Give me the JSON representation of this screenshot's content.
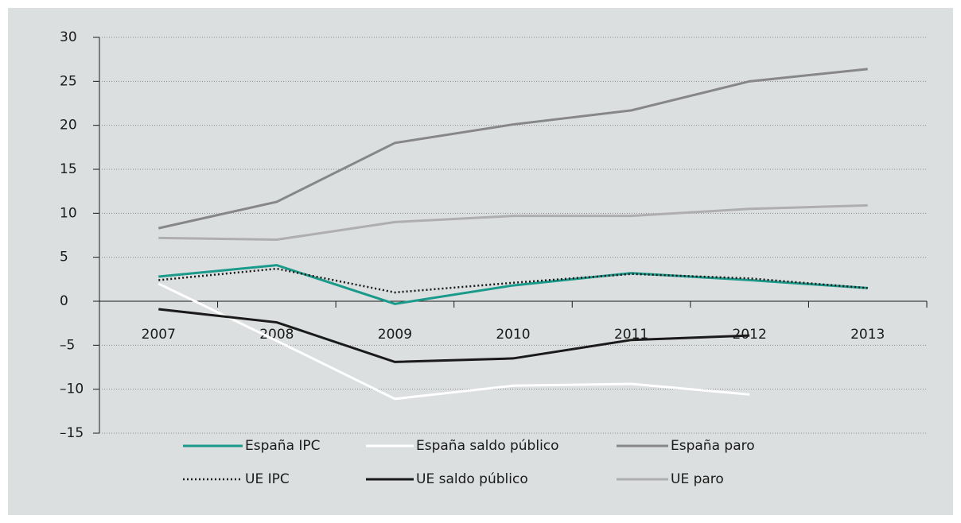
{
  "chart_data": {
    "type": "line",
    "categories": [
      "2007",
      "2008",
      "2009",
      "2010",
      "2011",
      "2012",
      "2013"
    ],
    "series": [
      {
        "name": "España IPC",
        "color": "#1a9a8a",
        "values": [
          2.8,
          4.1,
          -0.3,
          1.8,
          3.2,
          2.4,
          1.5
        ]
      },
      {
        "name": "España saldo público",
        "color": "#ffffff",
        "values": [
          2.0,
          -4.5,
          -11.1,
          -9.6,
          -9.4,
          -10.6,
          null
        ]
      },
      {
        "name": "España paro",
        "color": "#878787",
        "values": [
          8.3,
          11.3,
          18.0,
          20.1,
          21.7,
          25.0,
          26.4
        ]
      },
      {
        "name": "UE IPC",
        "color": "#1a1a1a",
        "dash": "dotted",
        "values": [
          2.4,
          3.7,
          1.0,
          2.1,
          3.1,
          2.6,
          1.5
        ]
      },
      {
        "name": "UE saldo público",
        "color": "#1a1a1a",
        "values": [
          -0.9,
          -2.4,
          -6.9,
          -6.5,
          -4.4,
          -3.9,
          null
        ]
      },
      {
        "name": "UE paro",
        "color": "#aeaeae",
        "values": [
          7.2,
          7.0,
          9.0,
          9.7,
          9.7,
          10.5,
          10.9
        ]
      }
    ],
    "ylim": [
      -15,
      30
    ],
    "yticks": [
      {
        "value": -15,
        "label": "–15"
      },
      {
        "value": -10,
        "label": "–10"
      },
      {
        "value": -5,
        "label": "–5"
      },
      0,
      5,
      10,
      15,
      20,
      25,
      30
    ],
    "grid": true
  }
}
